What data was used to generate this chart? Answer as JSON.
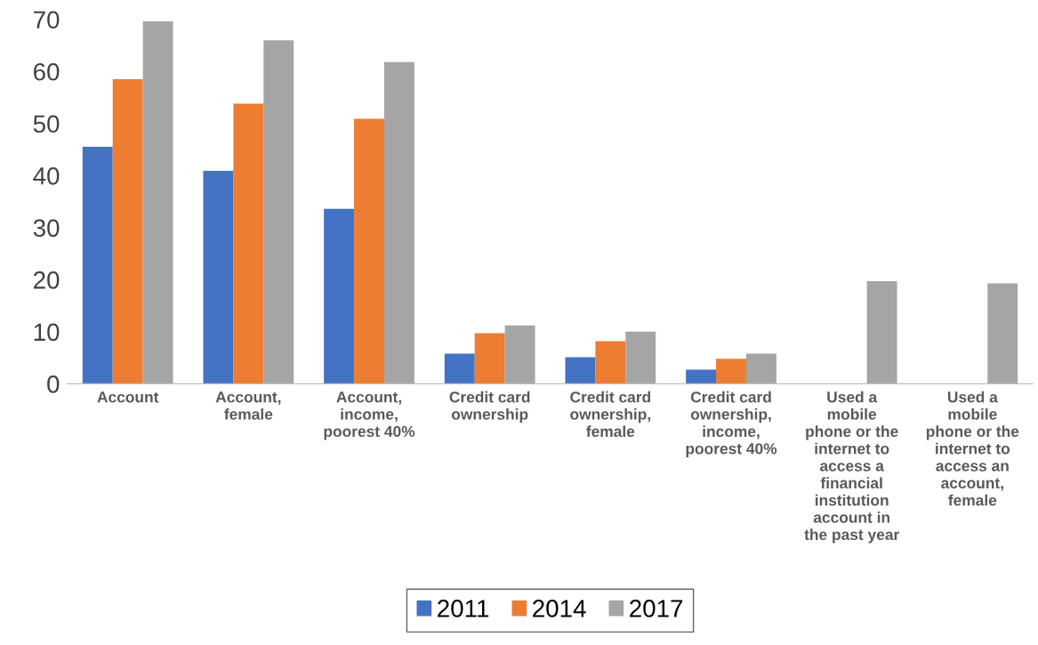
{
  "chart_data": {
    "type": "bar",
    "categories": [
      "Account",
      "Account,\nfemale",
      "Account,\nincome,\npoorest 40%",
      "Credit card\nownership",
      "Credit card\nownership,\nfemale",
      "Credit card\nownership,\nincome,\npoorest 40%",
      "Used a\nmobile\nphone or the\ninternet to\naccess a\nfinancial\ninstitution\naccount in\nthe past year",
      "Used a\nmobile\nphone or the\ninternet to\naccess an\naccount,\nfemale"
    ],
    "series": [
      {
        "name": "2011",
        "color": "#4472c4",
        "values": [
          45.5,
          40.9,
          33.6,
          5.8,
          5.1,
          2.7,
          null,
          null
        ]
      },
      {
        "name": "2014",
        "color": "#ed7d31",
        "values": [
          58.5,
          53.8,
          50.9,
          9.7,
          8.2,
          4.8,
          null,
          null
        ]
      },
      {
        "name": "2017",
        "color": "#a5a5a5",
        "values": [
          69.6,
          66.0,
          61.8,
          11.2,
          10.0,
          5.8,
          19.7,
          19.3
        ]
      }
    ],
    "ylim": [
      0,
      70
    ],
    "yticks": [
      0,
      10,
      20,
      30,
      40,
      50,
      60,
      70
    ],
    "grid": false,
    "legend": "bottom"
  }
}
